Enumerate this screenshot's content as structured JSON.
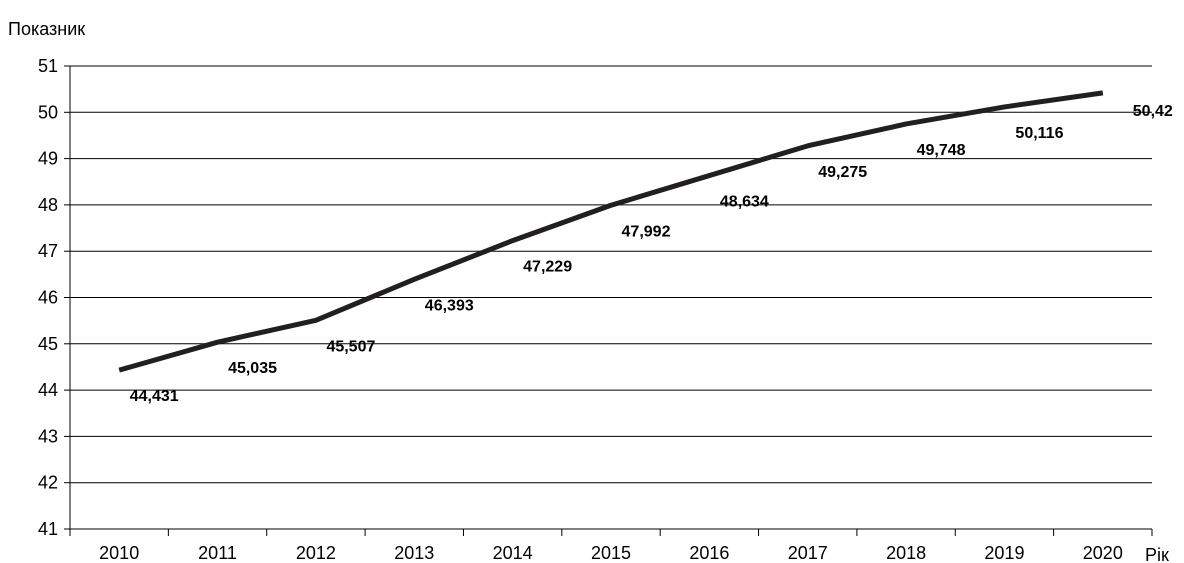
{
  "chart_data": {
    "type": "line",
    "title": "",
    "xlabel": "Рік",
    "ylabel": "Показник",
    "ylim": [
      41,
      51
    ],
    "yticks": [
      "41",
      "42",
      "43",
      "44",
      "45",
      "46",
      "47",
      "48",
      "49",
      "50",
      "51"
    ],
    "grid": "horizontal",
    "legend": "none",
    "categories": [
      "2010",
      "2011",
      "2012",
      "2013",
      "2014",
      "2015",
      "2016",
      "2017",
      "2018",
      "2019",
      "2020"
    ],
    "series": [
      {
        "values": [
          44.431,
          45.035,
          45.507,
          46.393,
          47.229,
          47.992,
          48.634,
          49.275,
          49.748,
          50.116,
          50.42
        ],
        "labels": [
          "44,431",
          "45,035",
          "45,507",
          "46,393",
          "47,229",
          "47,992",
          "48,634",
          "49,275",
          "49,748",
          "50,116",
          "50,42"
        ],
        "color": "#231f20"
      }
    ]
  }
}
